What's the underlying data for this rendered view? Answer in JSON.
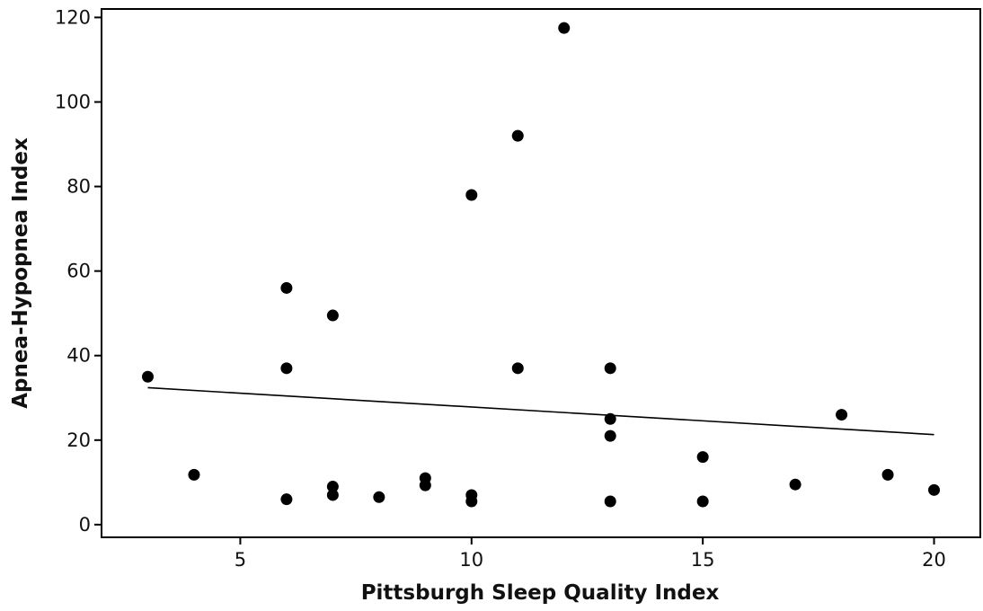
{
  "chart_data": {
    "type": "scatter",
    "title": "",
    "xlabel": "Pittsburgh Sleep Quality Index",
    "ylabel": "Apnea-Hypopnea Index",
    "xlim": [
      2,
      21
    ],
    "ylim": [
      -3,
      122
    ],
    "x_ticks": [
      5,
      10,
      15,
      20
    ],
    "y_ticks": [
      0,
      20,
      40,
      60,
      80,
      100,
      120
    ],
    "grid": false,
    "legend": "none",
    "marker_color": "#000000",
    "series": [
      {
        "points": [
          {
            "x": 3,
            "y": 35
          },
          {
            "x": 4,
            "y": 11.8
          },
          {
            "x": 6,
            "y": 56
          },
          {
            "x": 6,
            "y": 37
          },
          {
            "x": 6,
            "y": 6
          },
          {
            "x": 7,
            "y": 49.5
          },
          {
            "x": 7,
            "y": 9
          },
          {
            "x": 7,
            "y": 7
          },
          {
            "x": 8,
            "y": 6.5
          },
          {
            "x": 9,
            "y": 11
          },
          {
            "x": 9,
            "y": 9.3
          },
          {
            "x": 10,
            "y": 78
          },
          {
            "x": 10,
            "y": 7
          },
          {
            "x": 10,
            "y": 5.5
          },
          {
            "x": 11,
            "y": 92
          },
          {
            "x": 11,
            "y": 37
          },
          {
            "x": 12,
            "y": 117.5
          },
          {
            "x": 13,
            "y": 37
          },
          {
            "x": 13,
            "y": 25
          },
          {
            "x": 13,
            "y": 21
          },
          {
            "x": 13,
            "y": 5.5
          },
          {
            "x": 15,
            "y": 16
          },
          {
            "x": 15,
            "y": 5.5
          },
          {
            "x": 17,
            "y": 9.5
          },
          {
            "x": 18,
            "y": 26
          },
          {
            "x": 19,
            "y": 11.8
          },
          {
            "x": 20,
            "y": 8.2
          }
        ]
      }
    ],
    "trend_line": {
      "x": [
        3,
        20
      ],
      "y": [
        32.4,
        21.3
      ]
    }
  }
}
